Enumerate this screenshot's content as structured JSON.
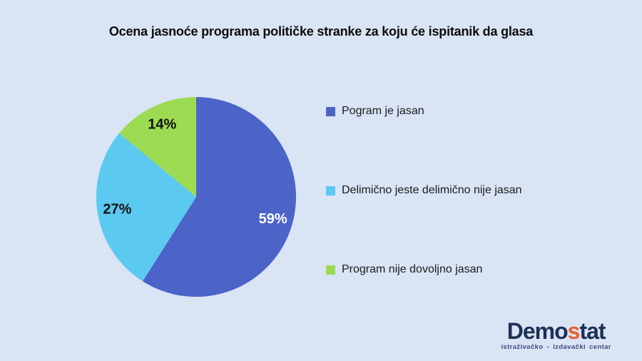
{
  "background_color": "#d9e4f5",
  "chart_data": {
    "type": "pie",
    "title": "Ocena jasnoće programa političke stranke za koju će ispitanik da glasa",
    "start_angle_deg": 0,
    "direction": "clockwise",
    "legend_position": "right",
    "value_suffix": "%",
    "slices": [
      {
        "label": "Pogram je jasan",
        "value": 59,
        "color": "#4c63c8",
        "value_label": "59%",
        "value_label_color": "#ffffff"
      },
      {
        "label": "Delimično jeste delimično nije jasan",
        "value": 27,
        "color": "#5bc9f0",
        "value_label": "27%",
        "value_label_color": "#111111"
      },
      {
        "label": "Program nije dovoljno jasan",
        "value": 14,
        "color": "#9ddb52",
        "value_label": "14%",
        "value_label_color": "#111111"
      }
    ]
  },
  "logo": {
    "part1": "Demo",
    "accent_letter": "s",
    "part2": "tat",
    "tagline": "istraživačko - izdavački centar",
    "navy_color": "#1d3156",
    "accent_color": "#e8632b",
    "tagline_color": "#3c4f7d"
  }
}
